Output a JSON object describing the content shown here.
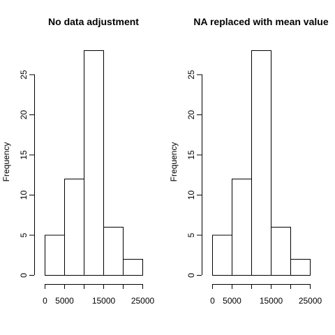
{
  "chart_data": [
    {
      "type": "bar",
      "title": "No data adjustment",
      "xlabel": "",
      "ylabel": "Frequency",
      "bins": [
        [
          0,
          5000
        ],
        [
          5000,
          10000
        ],
        [
          10000,
          15000
        ],
        [
          15000,
          20000
        ],
        [
          20000,
          25000
        ]
      ],
      "values": [
        5,
        12,
        28,
        6,
        2
      ],
      "xlim": [
        0,
        25000
      ],
      "ylim": [
        0,
        28
      ],
      "x_ticks": [
        0,
        5000,
        10000,
        15000,
        20000,
        25000
      ],
      "x_tick_labels": [
        "0",
        "5000",
        "",
        "15000",
        "",
        "25000"
      ],
      "y_ticks": [
        0,
        5,
        10,
        15,
        20,
        25
      ],
      "y_tick_labels": [
        "0",
        "5",
        "10",
        "15",
        "20",
        "25"
      ],
      "grid": false
    },
    {
      "type": "bar",
      "title": "NA replaced with mean value",
      "xlabel": "",
      "ylabel": "Frequency",
      "bins": [
        [
          0,
          5000
        ],
        [
          5000,
          10000
        ],
        [
          10000,
          15000
        ],
        [
          15000,
          20000
        ],
        [
          20000,
          25000
        ]
      ],
      "values": [
        5,
        12,
        28,
        6,
        2
      ],
      "xlim": [
        0,
        25000
      ],
      "ylim": [
        0,
        28
      ],
      "x_ticks": [
        0,
        5000,
        10000,
        15000,
        20000,
        25000
      ],
      "x_tick_labels": [
        "0",
        "5000",
        "",
        "15000",
        "",
        "25000"
      ],
      "y_ticks": [
        0,
        5,
        10,
        15,
        20,
        25
      ],
      "y_tick_labels": [
        "0",
        "5",
        "10",
        "15",
        "20",
        "25"
      ],
      "grid": false
    }
  ]
}
